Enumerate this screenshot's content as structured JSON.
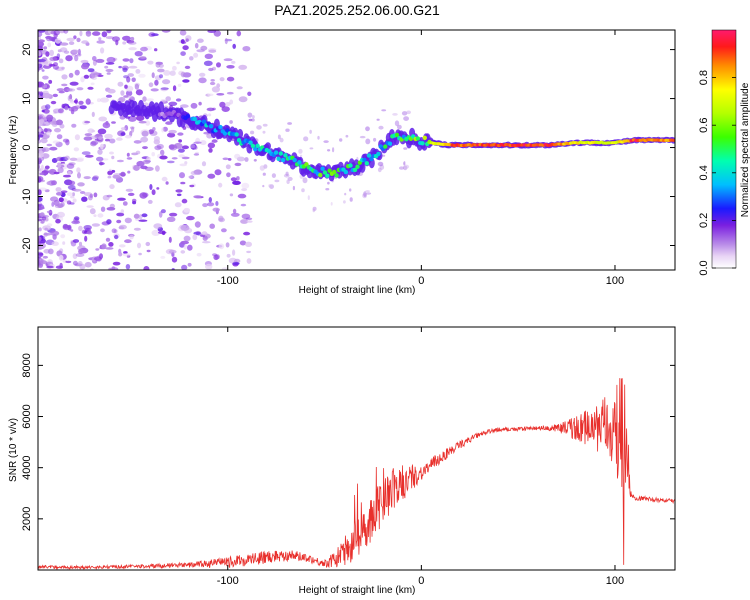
{
  "title": "PAZ1.2025.252.06.00.G21",
  "colors": {
    "snr_line": "#e8302c",
    "frame": "#000000",
    "background": "#ffffff"
  },
  "chart_data": [
    {
      "type": "heatmap",
      "name": "spectrogram",
      "xlabel": "Height of straight line (km)",
      "ylabel": "Frequency (Hz)",
      "xlim": [
        -198,
        131
      ],
      "ylim": [
        -25,
        24
      ],
      "xticks": [
        -100,
        0,
        100
      ],
      "yticks": [
        -20,
        -10,
        0,
        10,
        20
      ],
      "xtick_labels": [
        "-100",
        "0",
        "100"
      ],
      "ytick_labels": [
        "-20",
        "-10",
        "0",
        "10",
        "20"
      ],
      "colorbar": {
        "label": "Normalized spectral amplitude",
        "range": [
          0,
          1
        ],
        "ticks": [
          0.0,
          0.2,
          0.4,
          0.6,
          0.8
        ],
        "tick_labels": [
          "0.0",
          "0.2",
          "0.4",
          "0.6",
          "0.8"
        ],
        "colormap": "rainbow"
      },
      "ridge": [
        {
          "x": -150,
          "f": 8,
          "a": 0.1
        },
        {
          "x": -130,
          "f": 7,
          "a": 0.15
        },
        {
          "x": -115,
          "f": 5,
          "a": 0.35
        },
        {
          "x": -100,
          "f": 3,
          "a": 0.4
        },
        {
          "x": -85,
          "f": 0,
          "a": 0.4
        },
        {
          "x": -70,
          "f": -2,
          "a": 0.45
        },
        {
          "x": -55,
          "f": -5,
          "a": 0.55
        },
        {
          "x": -40,
          "f": -5,
          "a": 0.5
        },
        {
          "x": -25,
          "f": -2,
          "a": 0.45
        },
        {
          "x": -15,
          "f": 2,
          "a": 0.45
        },
        {
          "x": -5,
          "f": 2,
          "a": 0.55
        },
        {
          "x": 5,
          "f": 1,
          "a": 0.7
        },
        {
          "x": 15,
          "f": 0.5,
          "a": 0.95
        },
        {
          "x": 40,
          "f": 0.5,
          "a": 1.0
        },
        {
          "x": 65,
          "f": 0.5,
          "a": 1.0
        },
        {
          "x": 80,
          "f": 1,
          "a": 0.8
        },
        {
          "x": 100,
          "f": 1,
          "a": 0.75
        },
        {
          "x": 110,
          "f": 1.5,
          "a": 1.0
        },
        {
          "x": 131,
          "f": 1.5,
          "a": 0.9
        }
      ]
    },
    {
      "type": "line",
      "name": "snr",
      "xlabel": "Height of straight line (km)",
      "ylabel": "SNR (10 * v/v)",
      "xlim": [
        -198,
        131
      ],
      "ylim": [
        0,
        9500
      ],
      "xticks": [
        -100,
        0,
        100
      ],
      "yticks": [
        2000,
        4000,
        6000,
        8000
      ],
      "xtick_labels": [
        "-100",
        "0",
        "100"
      ],
      "ytick_labels": [
        "2000",
        "4000",
        "6000",
        "8000"
      ],
      "series": [
        {
          "name": "SNR",
          "x": [
            -198,
            -180,
            -160,
            -140,
            -120,
            -100,
            -90,
            -80,
            -70,
            -60,
            -50,
            -45,
            -40,
            -35,
            -30,
            -25,
            -20,
            -15,
            -10,
            -5,
            0,
            10,
            20,
            30,
            40,
            50,
            60,
            70,
            80,
            90,
            95,
            100,
            104,
            106,
            108,
            110,
            115,
            120,
            131
          ],
          "y": [
            130,
            100,
            120,
            150,
            200,
            300,
            400,
            500,
            600,
            500,
            250,
            400,
            700,
            1100,
            1600,
            2100,
            2700,
            3100,
            3300,
            3600,
            3800,
            4400,
            4900,
            5300,
            5500,
            5500,
            5550,
            5550,
            5550,
            5550,
            5600,
            5500,
            5300,
            4500,
            3000,
            2800,
            2800,
            2750,
            2700
          ],
          "noise": [
            60,
            60,
            60,
            80,
            100,
            200,
            250,
            250,
            250,
            150,
            150,
            300,
            600,
            800,
            900,
            900,
            1000,
            900,
            700,
            500,
            300,
            250,
            150,
            100,
            80,
            80,
            80,
            150,
            500,
            900,
            1200,
            1600,
            2500,
            2500,
            200,
            80,
            80,
            80,
            80
          ]
        }
      ]
    }
  ]
}
